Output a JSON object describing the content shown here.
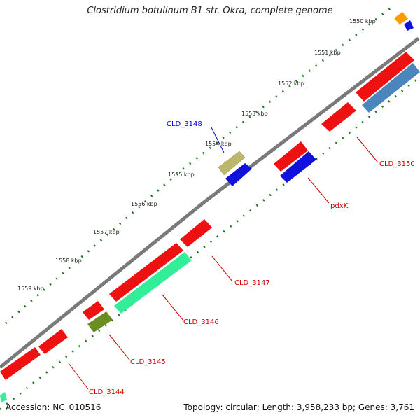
{
  "header": {
    "title": "Clostridium botulinum B1 str. Okra, complete genome"
  },
  "footer": {
    "accession": "Accession: NC_010516",
    "summary": "Topology: circular; Length: 3,958,233 bp; Genes: 3,761"
  },
  "ticks": [
    {
      "label": "1550 kbp"
    },
    {
      "label": "1551 kbp"
    },
    {
      "label": "1552 kbp"
    },
    {
      "label": "1553 kbp"
    },
    {
      "label": "1554 kbp"
    },
    {
      "label": "1555 kbp"
    },
    {
      "label": "1556 kbp"
    },
    {
      "label": "1557 kbp"
    },
    {
      "label": "1558 kbp"
    },
    {
      "label": "1559 kbp"
    }
  ],
  "gene_labels": [
    {
      "text": "CLD_3148",
      "color": "#0000cc"
    },
    {
      "text": "CLD_3150",
      "color": "#cc0000"
    },
    {
      "text": "pdxK",
      "color": "#cc0000"
    },
    {
      "text": "CLD_3147",
      "color": "#cc0000"
    },
    {
      "text": "CLD_3146",
      "color": "#cc0000"
    },
    {
      "text": "CLD_3145",
      "color": "#cc0000"
    },
    {
      "text": "CLD_3144",
      "color": "#cc0000"
    }
  ],
  "colors": {
    "backbone": "#7a7a7a",
    "tick_dots": "#1f7a1f",
    "gene_red": "#ee1111",
    "gene_blue": "#1111dd",
    "gene_steelblue": "#4a86bb",
    "gene_teal": "#33ee99",
    "gene_khaki": "#bdb76b",
    "gene_olive": "#6b8e23",
    "gene_orange": "#ff9900"
  }
}
